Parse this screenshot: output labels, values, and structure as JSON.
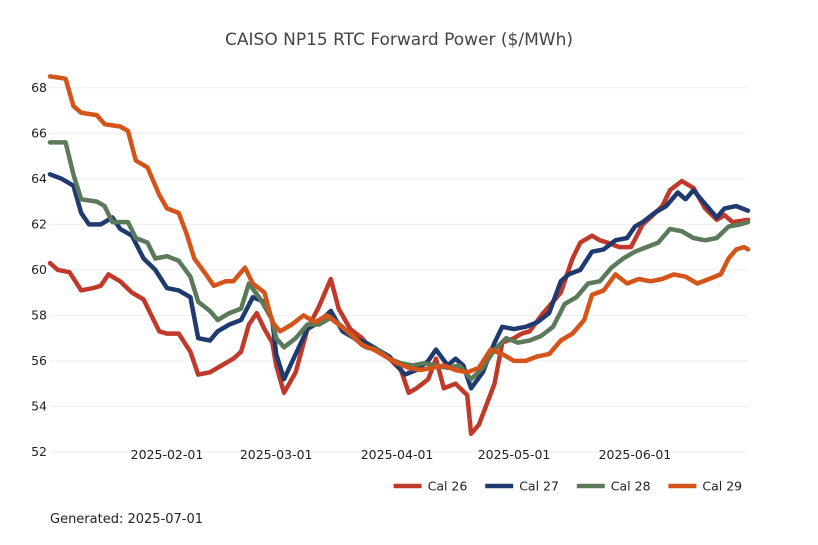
{
  "chart_data": {
    "type": "line",
    "title": "CAISO NP15 RTC Forward Power ($/MWh)",
    "xlabel": "",
    "ylabel": "",
    "x_start": "2025-01-02",
    "x_end": "2025-06-30",
    "ylim": [
      52,
      69
    ],
    "yticks": [
      52,
      54,
      56,
      58,
      60,
      62,
      64,
      66,
      68
    ],
    "xticks": [
      "2025-02-01",
      "2025-03-01",
      "2025-04-01",
      "2025-05-01",
      "2025-06-01"
    ],
    "grid": "horizontal",
    "legend_position": "bottom-right",
    "series": [
      {
        "name": "Cal 26",
        "color": "#C0392B",
        "points": [
          [
            "2025-01-02",
            60.3
          ],
          [
            "2025-01-04",
            60.0
          ],
          [
            "2025-01-07",
            59.9
          ],
          [
            "2025-01-10",
            59.1
          ],
          [
            "2025-01-13",
            59.2
          ],
          [
            "2025-01-15",
            59.3
          ],
          [
            "2025-01-17",
            59.8
          ],
          [
            "2025-01-20",
            59.5
          ],
          [
            "2025-01-23",
            59.0
          ],
          [
            "2025-01-26",
            58.7
          ],
          [
            "2025-01-30",
            57.3
          ],
          [
            "2025-02-01",
            57.2
          ],
          [
            "2025-02-04",
            57.2
          ],
          [
            "2025-02-07",
            56.4
          ],
          [
            "2025-02-09",
            55.4
          ],
          [
            "2025-02-12",
            55.5
          ],
          [
            "2025-02-15",
            55.8
          ],
          [
            "2025-02-18",
            56.1
          ],
          [
            "2025-02-20",
            56.4
          ],
          [
            "2025-02-22",
            57.6
          ],
          [
            "2025-02-24",
            58.1
          ],
          [
            "2025-02-26",
            57.4
          ],
          [
            "2025-02-28",
            56.8
          ],
          [
            "2025-03-01",
            55.8
          ],
          [
            "2025-03-03",
            54.6
          ],
          [
            "2025-03-06",
            55.5
          ],
          [
            "2025-03-09",
            57.4
          ],
          [
            "2025-03-12",
            58.4
          ],
          [
            "2025-03-15",
            59.6
          ],
          [
            "2025-03-17",
            58.3
          ],
          [
            "2025-03-20",
            57.4
          ],
          [
            "2025-03-23",
            57.0
          ],
          [
            "2025-03-25",
            56.6
          ],
          [
            "2025-03-27",
            56.5
          ],
          [
            "2025-03-30",
            56.1
          ],
          [
            "2025-04-02",
            55.6
          ],
          [
            "2025-04-04",
            54.6
          ],
          [
            "2025-04-06",
            54.8
          ],
          [
            "2025-04-09",
            55.2
          ],
          [
            "2025-04-11",
            56.1
          ],
          [
            "2025-04-13",
            54.8
          ],
          [
            "2025-04-16",
            55.0
          ],
          [
            "2025-04-19",
            54.5
          ],
          [
            "2025-04-20",
            52.8
          ],
          [
            "2025-04-22",
            53.2
          ],
          [
            "2025-04-24",
            54.1
          ],
          [
            "2025-04-26",
            55.0
          ],
          [
            "2025-04-28",
            56.8
          ],
          [
            "2025-05-01",
            57.0
          ],
          [
            "2025-05-03",
            57.2
          ],
          [
            "2025-05-05",
            57.3
          ],
          [
            "2025-05-08",
            58.0
          ],
          [
            "2025-05-10",
            58.4
          ],
          [
            "2025-05-13",
            59.0
          ],
          [
            "2025-05-16",
            60.5
          ],
          [
            "2025-05-18",
            61.2
          ],
          [
            "2025-05-21",
            61.5
          ],
          [
            "2025-05-23",
            61.3
          ],
          [
            "2025-05-25",
            61.2
          ],
          [
            "2025-05-28",
            61.0
          ],
          [
            "2025-05-31",
            61.0
          ],
          [
            "2025-06-03",
            62.0
          ],
          [
            "2025-06-05",
            62.3
          ],
          [
            "2025-06-08",
            62.8
          ],
          [
            "2025-06-10",
            63.5
          ],
          [
            "2025-06-13",
            63.9
          ],
          [
            "2025-06-16",
            63.6
          ],
          [
            "2025-06-19",
            62.7
          ],
          [
            "2025-06-22",
            62.2
          ],
          [
            "2025-06-24",
            62.4
          ],
          [
            "2025-06-26",
            62.1
          ],
          [
            "2025-06-30",
            62.2
          ]
        ]
      },
      {
        "name": "Cal 27",
        "color": "#1F3A6E",
        "points": [
          [
            "2025-01-02",
            64.2
          ],
          [
            "2025-01-05",
            64.0
          ],
          [
            "2025-01-08",
            63.7
          ],
          [
            "2025-01-10",
            62.5
          ],
          [
            "2025-01-12",
            62.0
          ],
          [
            "2025-01-15",
            62.0
          ],
          [
            "2025-01-18",
            62.3
          ],
          [
            "2025-01-20",
            61.8
          ],
          [
            "2025-01-23",
            61.5
          ],
          [
            "2025-01-26",
            60.5
          ],
          [
            "2025-01-29",
            60.0
          ],
          [
            "2025-02-01",
            59.2
          ],
          [
            "2025-02-04",
            59.1
          ],
          [
            "2025-02-07",
            58.8
          ],
          [
            "2025-02-09",
            57.0
          ],
          [
            "2025-02-12",
            56.9
          ],
          [
            "2025-02-14",
            57.3
          ],
          [
            "2025-02-17",
            57.6
          ],
          [
            "2025-02-20",
            57.8
          ],
          [
            "2025-02-23",
            58.8
          ],
          [
            "2025-02-26",
            58.6
          ],
          [
            "2025-02-28",
            57.8
          ],
          [
            "2025-03-01",
            56.3
          ],
          [
            "2025-03-03",
            55.2
          ],
          [
            "2025-03-06",
            56.3
          ],
          [
            "2025-03-09",
            57.4
          ],
          [
            "2025-03-12",
            57.7
          ],
          [
            "2025-03-15",
            58.2
          ],
          [
            "2025-03-18",
            57.3
          ],
          [
            "2025-03-21",
            57.0
          ],
          [
            "2025-03-24",
            56.8
          ],
          [
            "2025-03-27",
            56.5
          ],
          [
            "2025-03-30",
            56.2
          ],
          [
            "2025-04-01",
            55.8
          ],
          [
            "2025-04-03",
            55.4
          ],
          [
            "2025-04-06",
            55.6
          ],
          [
            "2025-04-09",
            56.0
          ],
          [
            "2025-04-11",
            56.5
          ],
          [
            "2025-04-14",
            55.8
          ],
          [
            "2025-04-16",
            56.1
          ],
          [
            "2025-04-18",
            55.8
          ],
          [
            "2025-04-20",
            54.8
          ],
          [
            "2025-04-23",
            55.5
          ],
          [
            "2025-04-26",
            56.8
          ],
          [
            "2025-04-28",
            57.5
          ],
          [
            "2025-05-01",
            57.4
          ],
          [
            "2025-05-04",
            57.5
          ],
          [
            "2025-05-07",
            57.7
          ],
          [
            "2025-05-10",
            58.1
          ],
          [
            "2025-05-13",
            59.5
          ],
          [
            "2025-05-15",
            59.8
          ],
          [
            "2025-05-18",
            60.0
          ],
          [
            "2025-05-21",
            60.8
          ],
          [
            "2025-05-24",
            60.9
          ],
          [
            "2025-05-27",
            61.3
          ],
          [
            "2025-05-30",
            61.4
          ],
          [
            "2025-06-01",
            61.9
          ],
          [
            "2025-06-03",
            62.1
          ],
          [
            "2025-06-06",
            62.5
          ],
          [
            "2025-06-09",
            62.8
          ],
          [
            "2025-06-12",
            63.4
          ],
          [
            "2025-06-14",
            63.1
          ],
          [
            "2025-06-16",
            63.5
          ],
          [
            "2025-06-19",
            62.9
          ],
          [
            "2025-06-22",
            62.3
          ],
          [
            "2025-06-24",
            62.7
          ],
          [
            "2025-06-27",
            62.8
          ],
          [
            "2025-06-30",
            62.6
          ]
        ]
      },
      {
        "name": "Cal 28",
        "color": "#5B7A5A",
        "points": [
          [
            "2025-01-02",
            65.6
          ],
          [
            "2025-01-06",
            65.6
          ],
          [
            "2025-01-08",
            64.2
          ],
          [
            "2025-01-10",
            63.1
          ],
          [
            "2025-01-14",
            63.0
          ],
          [
            "2025-01-16",
            62.8
          ],
          [
            "2025-01-18",
            62.1
          ],
          [
            "2025-01-22",
            62.1
          ],
          [
            "2025-01-24",
            61.4
          ],
          [
            "2025-01-27",
            61.2
          ],
          [
            "2025-01-29",
            60.5
          ],
          [
            "2025-02-01",
            60.6
          ],
          [
            "2025-02-04",
            60.4
          ],
          [
            "2025-02-07",
            59.7
          ],
          [
            "2025-02-09",
            58.6
          ],
          [
            "2025-02-12",
            58.2
          ],
          [
            "2025-02-14",
            57.8
          ],
          [
            "2025-02-17",
            58.1
          ],
          [
            "2025-02-20",
            58.3
          ],
          [
            "2025-02-22",
            59.4
          ],
          [
            "2025-02-25",
            58.7
          ],
          [
            "2025-02-28",
            57.8
          ],
          [
            "2025-03-01",
            57.0
          ],
          [
            "2025-03-03",
            56.6
          ],
          [
            "2025-03-06",
            57.0
          ],
          [
            "2025-03-09",
            57.6
          ],
          [
            "2025-03-12",
            57.6
          ],
          [
            "2025-03-15",
            57.9
          ],
          [
            "2025-03-18",
            57.5
          ],
          [
            "2025-03-21",
            57.0
          ],
          [
            "2025-03-24",
            56.6
          ],
          [
            "2025-03-27",
            56.5
          ],
          [
            "2025-03-30",
            56.1
          ],
          [
            "2025-04-02",
            55.9
          ],
          [
            "2025-04-05",
            55.8
          ],
          [
            "2025-04-08",
            55.9
          ],
          [
            "2025-04-11",
            55.8
          ],
          [
            "2025-04-14",
            55.7
          ],
          [
            "2025-04-17",
            55.8
          ],
          [
            "2025-04-20",
            55.2
          ],
          [
            "2025-04-23",
            55.7
          ],
          [
            "2025-04-26",
            56.5
          ],
          [
            "2025-04-29",
            57.0
          ],
          [
            "2025-05-02",
            56.8
          ],
          [
            "2025-05-05",
            56.9
          ],
          [
            "2025-05-08",
            57.1
          ],
          [
            "2025-05-11",
            57.5
          ],
          [
            "2025-05-14",
            58.5
          ],
          [
            "2025-05-17",
            58.8
          ],
          [
            "2025-05-20",
            59.4
          ],
          [
            "2025-05-23",
            59.5
          ],
          [
            "2025-05-26",
            60.1
          ],
          [
            "2025-05-29",
            60.5
          ],
          [
            "2025-06-01",
            60.8
          ],
          [
            "2025-06-04",
            61.0
          ],
          [
            "2025-06-07",
            61.2
          ],
          [
            "2025-06-10",
            61.8
          ],
          [
            "2025-06-13",
            61.7
          ],
          [
            "2025-06-16",
            61.4
          ],
          [
            "2025-06-19",
            61.3
          ],
          [
            "2025-06-22",
            61.4
          ],
          [
            "2025-06-25",
            61.9
          ],
          [
            "2025-06-28",
            62.0
          ],
          [
            "2025-06-30",
            62.1
          ]
        ]
      },
      {
        "name": "Cal 29",
        "color": "#D4541A",
        "points": [
          [
            "2025-01-02",
            68.5
          ],
          [
            "2025-01-06",
            68.4
          ],
          [
            "2025-01-08",
            67.2
          ],
          [
            "2025-01-10",
            66.9
          ],
          [
            "2025-01-14",
            66.8
          ],
          [
            "2025-01-16",
            66.4
          ],
          [
            "2025-01-20",
            66.3
          ],
          [
            "2025-01-22",
            66.1
          ],
          [
            "2025-01-24",
            64.8
          ],
          [
            "2025-01-27",
            64.5
          ],
          [
            "2025-01-30",
            63.3
          ],
          [
            "2025-02-01",
            62.7
          ],
          [
            "2025-02-04",
            62.5
          ],
          [
            "2025-02-06",
            61.6
          ],
          [
            "2025-02-08",
            60.5
          ],
          [
            "2025-02-11",
            59.8
          ],
          [
            "2025-02-13",
            59.3
          ],
          [
            "2025-02-16",
            59.5
          ],
          [
            "2025-02-18",
            59.5
          ],
          [
            "2025-02-21",
            60.1
          ],
          [
            "2025-02-23",
            59.4
          ],
          [
            "2025-02-26",
            59.0
          ],
          [
            "2025-02-28",
            57.7
          ],
          [
            "2025-03-02",
            57.3
          ],
          [
            "2025-03-05",
            57.6
          ],
          [
            "2025-03-08",
            58.0
          ],
          [
            "2025-03-11",
            57.7
          ],
          [
            "2025-03-14",
            58.0
          ],
          [
            "2025-03-17",
            57.6
          ],
          [
            "2025-03-20",
            57.2
          ],
          [
            "2025-03-23",
            56.7
          ],
          [
            "2025-03-26",
            56.5
          ],
          [
            "2025-03-29",
            56.2
          ],
          [
            "2025-04-01",
            55.9
          ],
          [
            "2025-04-04",
            55.7
          ],
          [
            "2025-04-07",
            55.6
          ],
          [
            "2025-04-10",
            55.7
          ],
          [
            "2025-04-13",
            55.8
          ],
          [
            "2025-04-16",
            55.6
          ],
          [
            "2025-04-19",
            55.5
          ],
          [
            "2025-04-22",
            55.7
          ],
          [
            "2025-04-25",
            56.5
          ],
          [
            "2025-04-28",
            56.3
          ],
          [
            "2025-05-01",
            56.0
          ],
          [
            "2025-05-04",
            56.0
          ],
          [
            "2025-05-07",
            56.2
          ],
          [
            "2025-05-10",
            56.3
          ],
          [
            "2025-05-13",
            56.9
          ],
          [
            "2025-05-16",
            57.2
          ],
          [
            "2025-05-19",
            57.8
          ],
          [
            "2025-05-21",
            58.9
          ],
          [
            "2025-05-24",
            59.1
          ],
          [
            "2025-05-27",
            59.8
          ],
          [
            "2025-05-30",
            59.4
          ],
          [
            "2025-06-02",
            59.6
          ],
          [
            "2025-06-05",
            59.5
          ],
          [
            "2025-06-08",
            59.6
          ],
          [
            "2025-06-11",
            59.8
          ],
          [
            "2025-06-14",
            59.7
          ],
          [
            "2025-06-17",
            59.4
          ],
          [
            "2025-06-20",
            59.6
          ],
          [
            "2025-06-23",
            59.8
          ],
          [
            "2025-06-25",
            60.5
          ],
          [
            "2025-06-27",
            60.9
          ],
          [
            "2025-06-29",
            61.0
          ],
          [
            "2025-06-30",
            60.9
          ]
        ]
      }
    ]
  },
  "footer": {
    "generated": "Generated: 2025-07-01"
  }
}
